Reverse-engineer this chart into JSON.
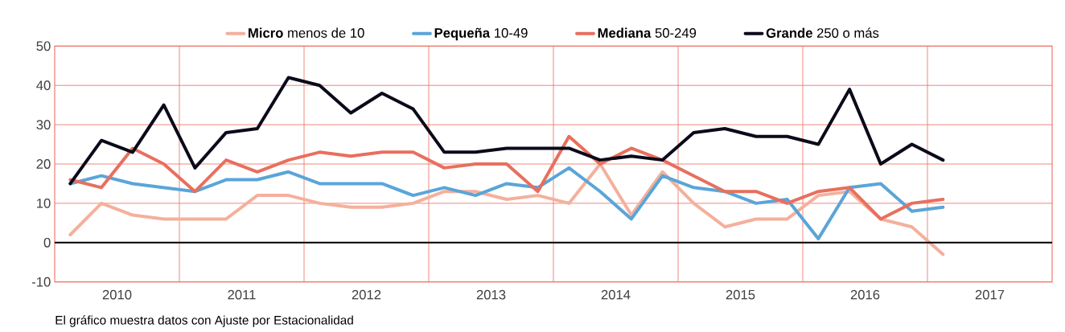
{
  "chart_data": {
    "type": "line",
    "x": [
      2010.125,
      2010.375,
      2010.625,
      2010.875,
      2011.125,
      2011.375,
      2011.625,
      2011.875,
      2012.125,
      2012.375,
      2012.625,
      2012.875,
      2013.125,
      2013.375,
      2013.625,
      2013.875,
      2014.125,
      2014.375,
      2014.625,
      2014.875,
      2015.125,
      2015.375,
      2015.625,
      2015.875,
      2016.125,
      2016.375,
      2016.625,
      2016.875,
      2017.125
    ],
    "series": [
      {
        "name": "**Micro** menos de 10",
        "color": "#f4b09c",
        "values": [
          2,
          10,
          7,
          6,
          6,
          6,
          12,
          12,
          10,
          9,
          9,
          10,
          13,
          13,
          11,
          12,
          10,
          20,
          7,
          18,
          10,
          4,
          6,
          6,
          12,
          13,
          6,
          4,
          -3
        ]
      },
      {
        "name": "**Pequeña** 10-49",
        "color": "#5aa5d8",
        "values": [
          15,
          17,
          15,
          14,
          13,
          16,
          16,
          18,
          15,
          15,
          15,
          12,
          14,
          12,
          15,
          14,
          19,
          13,
          6,
          17,
          14,
          13,
          10,
          11,
          1,
          14,
          15,
          8,
          9
        ]
      },
      {
        "name": "**Mediana** 50-249",
        "color": "#e86f5e",
        "values": [
          16,
          14,
          24,
          20,
          13,
          21,
          18,
          21,
          23,
          22,
          23,
          23,
          19,
          20,
          20,
          13,
          27,
          20,
          24,
          21,
          17,
          13,
          13,
          10,
          13,
          14,
          6,
          10,
          11
        ]
      },
      {
        "name": "**Grande** 250 o más",
        "color": "#0a0a1a",
        "values": [
          15,
          26,
          23,
          35,
          19,
          28,
          29,
          42,
          40,
          33,
          38,
          34,
          23,
          23,
          24,
          24,
          24,
          21,
          22,
          21,
          28,
          29,
          27,
          27,
          25,
          39,
          20,
          25,
          21
        ]
      }
    ],
    "xlim": [
      2010,
      2018
    ],
    "xticks": [
      {
        "value": 2010.5,
        "label": "2010"
      },
      {
        "value": 2011,
        "label": null
      },
      {
        "value": 2011.5,
        "label": "2011"
      },
      {
        "value": 2012,
        "label": null
      },
      {
        "value": 2012.5,
        "label": "2012"
      },
      {
        "value": 2013,
        "label": null
      },
      {
        "value": 2013.5,
        "label": "2013"
      },
      {
        "value": 2014,
        "label": null
      },
      {
        "value": 2014.5,
        "label": "2014"
      },
      {
        "value": 2015,
        "label": null
      },
      {
        "value": 2015.5,
        "label": "2015"
      },
      {
        "value": 2016,
        "label": null
      },
      {
        "value": 2016.5,
        "label": "2016"
      },
      {
        "value": 2017,
        "label": null
      },
      {
        "value": 2017.5,
        "label": "2017"
      }
    ],
    "ylim": [
      -10,
      50
    ],
    "yticks": [
      -10,
      0,
      10,
      20,
      30,
      40,
      50
    ],
    "ref_lines": [
      {
        "axis": "y",
        "value": 0,
        "color": "#000000"
      }
    ],
    "grid": true,
    "legend": "top",
    "line_style": "solid",
    "marker": "none",
    "annotations": [
      "El gráfico muestra datos con Ajuste por Estacionalidad"
    ]
  }
}
